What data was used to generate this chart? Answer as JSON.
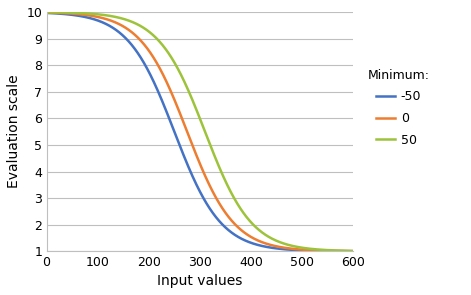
{
  "title": "",
  "xlabel": "Input values",
  "ylabel": "Evaluation scale",
  "xlim": [
    0,
    600
  ],
  "ylim": [
    1,
    10
  ],
  "xticks": [
    0,
    100,
    200,
    300,
    400,
    500,
    600
  ],
  "yticks": [
    1,
    2,
    3,
    4,
    5,
    6,
    7,
    8,
    9,
    10
  ],
  "legend_title": "Minimum:",
  "series": [
    {
      "label": "-50",
      "color": "#4472C4",
      "midpoint": 250
    },
    {
      "label": "0",
      "color": "#ED7D31",
      "midpoint": 275
    },
    {
      "label": "50",
      "color": "#9DC33B",
      "midpoint": 310
    }
  ],
  "max_val": 10,
  "min_val": 1,
  "k": 0.022,
  "background_color": "#ffffff",
  "grid_color": "#bfbfbf",
  "label_fontsize": 10,
  "tick_fontsize": 9,
  "legend_fontsize": 9,
  "line_width": 1.8
}
